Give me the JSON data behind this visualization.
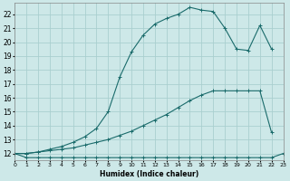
{
  "xlabel": "Humidex (Indice chaleur)",
  "bg_color": "#cde8e8",
  "grid_color": "#aacfcf",
  "line_color": "#1a6b6b",
  "xlim": [
    0,
    23
  ],
  "ylim": [
    11.5,
    22.8
  ],
  "yticks": [
    12,
    13,
    14,
    15,
    16,
    17,
    18,
    19,
    20,
    21,
    22
  ],
  "xticks": [
    0,
    1,
    2,
    3,
    4,
    5,
    6,
    7,
    8,
    9,
    10,
    11,
    12,
    13,
    14,
    15,
    16,
    17,
    18,
    19,
    20,
    21,
    22,
    23
  ],
  "curve1_x": [
    0,
    1,
    2,
    3,
    4,
    5,
    6,
    7,
    8,
    9,
    10,
    11,
    12,
    13,
    14,
    15,
    16,
    17,
    18,
    19,
    20,
    21,
    22,
    23
  ],
  "curve1_y": [
    12.0,
    11.7,
    11.7,
    11.7,
    11.7,
    11.7,
    11.7,
    11.7,
    11.7,
    11.7,
    11.7,
    11.7,
    11.7,
    11.7,
    11.7,
    11.7,
    11.7,
    11.7,
    11.7,
    11.7,
    11.7,
    11.7,
    11.7,
    12.0
  ],
  "curve2_x": [
    0,
    1,
    2,
    3,
    4,
    5,
    6,
    7,
    8,
    9,
    10,
    11,
    12,
    13,
    14,
    15,
    16,
    17,
    18,
    19,
    20,
    21,
    22
  ],
  "curve2_y": [
    12.0,
    12.0,
    12.1,
    12.2,
    12.3,
    12.4,
    12.6,
    12.8,
    13.0,
    13.3,
    13.6,
    14.0,
    14.4,
    14.8,
    15.3,
    15.8,
    16.2,
    16.5,
    16.5,
    16.5,
    16.5,
    16.5,
    13.5
  ],
  "curve3_x": [
    0,
    1,
    2,
    3,
    4,
    5,
    6,
    7,
    8,
    9,
    10,
    11,
    12,
    13,
    14,
    15,
    16,
    17,
    18,
    19,
    20,
    21,
    22
  ],
  "curve3_y": [
    12.0,
    12.0,
    12.1,
    12.3,
    12.5,
    12.8,
    13.2,
    13.8,
    15.0,
    17.5,
    19.3,
    20.5,
    21.3,
    21.7,
    22.0,
    22.5,
    22.3,
    22.2,
    21.0,
    19.5,
    19.4,
    21.2,
    19.5
  ]
}
